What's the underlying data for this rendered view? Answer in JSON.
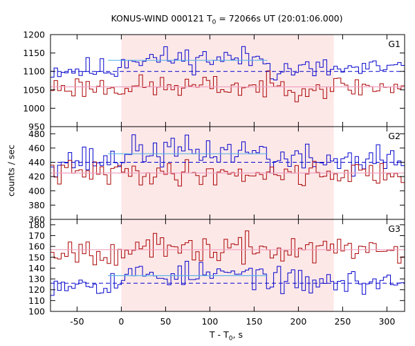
{
  "chart_data": {
    "type": "line",
    "title": {
      "prefix": "KONUS-WIND 000121 T",
      "sub": "0",
      "suffix": " = 72066s UT (20:01:06.000)"
    },
    "xlabel": {
      "prefix": "T - T",
      "sub": "0",
      "suffix": ", s"
    },
    "ylabel": "counts / sec",
    "xlim": [
      -80,
      320
    ],
    "x_ticks": [
      -50,
      0,
      50,
      100,
      150,
      200,
      250,
      300
    ],
    "shaded_interval": [
      0,
      240
    ],
    "colors": {
      "counts": "#0000cc",
      "ratio": "#aa0000",
      "shade": "#fde8e8",
      "fit": "#5ab4e6",
      "ratio_fit": "#f0a0c0"
    },
    "grid": false,
    "panels": [
      {
        "label": "G1",
        "ylim": [
          950,
          1200
        ],
        "y_ticks": [
          950,
          1000,
          1050,
          1100,
          1150,
          1200
        ],
        "background": 1100,
        "background_upper": 1130,
        "series": [
          {
            "name": "",
            "kind": "counts",
            "mean": 1105,
            "amplitude": 25,
            "seed": 11
          },
          {
            "name": "",
            "kind": "ratio",
            "mean": 1058,
            "amplitude": 24,
            "seed": 23
          }
        ]
      },
      {
        "label": "G2",
        "ylim": [
          360,
          490
        ],
        "y_ticks": [
          360,
          380,
          400,
          420,
          440,
          460,
          480
        ],
        "background": 440,
        "background_upper": 452,
        "series": [
          {
            "name": "",
            "kind": "counts",
            "mean": 443,
            "amplitude": 16,
            "seed": 37
          },
          {
            "name": "",
            "kind": "ratio",
            "mean": 425,
            "amplitude": 13,
            "seed": 41
          }
        ]
      },
      {
        "label": "G3",
        "ylim": [
          100,
          185
        ],
        "y_ticks": [
          100,
          110,
          120,
          130,
          140,
          150,
          160,
          170,
          180
        ],
        "background": 126,
        "background_upper": 133,
        "series": [
          {
            "name": "",
            "kind": "counts",
            "mean": 127,
            "amplitude": 9,
            "seed": 53
          },
          {
            "name": "",
            "kind": "ratio",
            "mean": 157,
            "amplitude": 10,
            "seed": 67
          }
        ]
      }
    ]
  }
}
